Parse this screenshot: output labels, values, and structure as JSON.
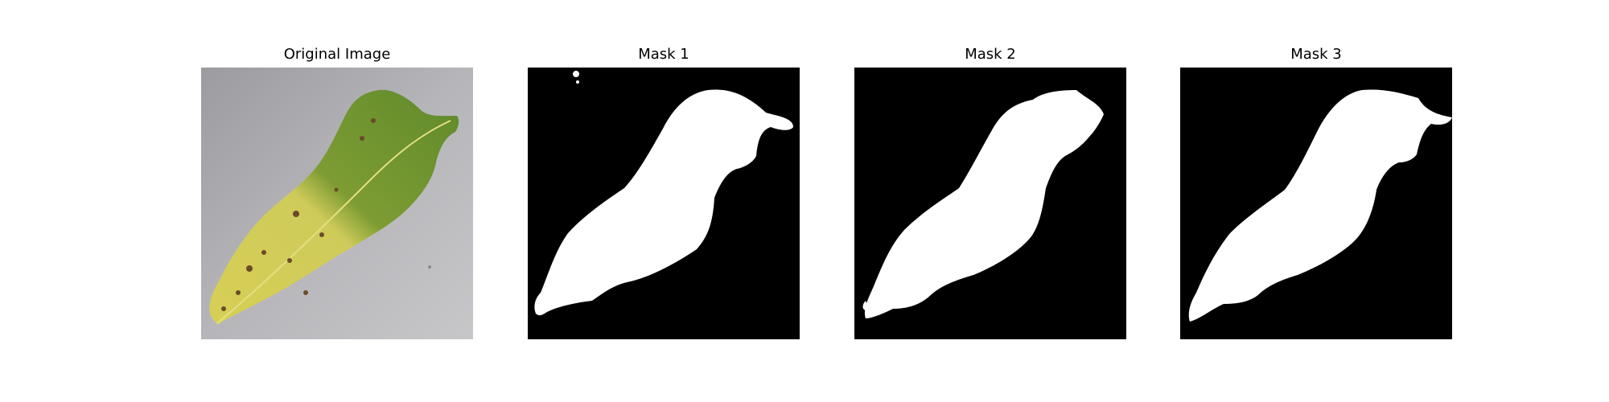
{
  "figure": {
    "panels": [
      {
        "title": "Original Image",
        "kind": "photo"
      },
      {
        "title": "Mask 1",
        "kind": "mask"
      },
      {
        "title": "Mask 2",
        "kind": "mask"
      },
      {
        "title": "Mask 3",
        "kind": "mask"
      }
    ]
  },
  "colors": {
    "mask_background": "#000000",
    "mask_foreground": "#ffffff",
    "photo_background": "#b9b9bd",
    "leaf_yellow": "#d6cf5a",
    "leaf_green": "#6f9530",
    "leaf_spots": "#6b4a2a"
  },
  "icons": [
    "leaf-photo",
    "segmentation-mask"
  ]
}
